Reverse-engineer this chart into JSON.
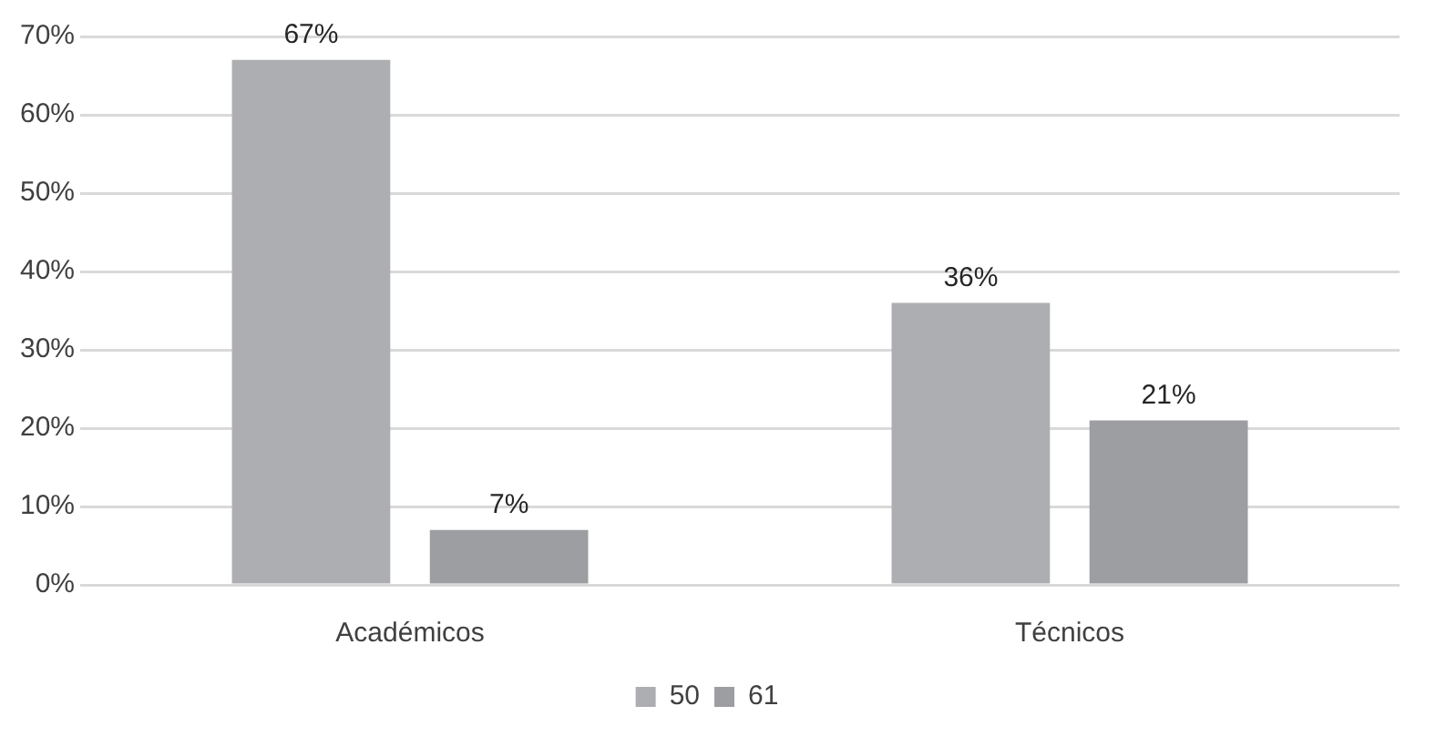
{
  "chart_data": {
    "type": "bar",
    "categories": [
      "Académicos",
      "Técnicos"
    ],
    "series": [
      {
        "name": "50",
        "color": "#adaeb2",
        "values": [
          67,
          36
        ],
        "value_labels": [
          "67%",
          "36%"
        ]
      },
      {
        "name": "61",
        "color": "#9d9ea2",
        "values": [
          7,
          21
        ],
        "value_labels": [
          "7%",
          "21%"
        ]
      }
    ],
    "ylim": [
      0,
      70
    ],
    "yticks": [
      {
        "value": 0,
        "label": "0%"
      },
      {
        "value": 10,
        "label": "10%"
      },
      {
        "value": 20,
        "label": "20%"
      },
      {
        "value": 30,
        "label": "30%"
      },
      {
        "value": 40,
        "label": "40%"
      },
      {
        "value": 50,
        "label": "50%"
      },
      {
        "value": 60,
        "label": "60%"
      },
      {
        "value": 70,
        "label": "70%"
      }
    ],
    "grid": "y",
    "legend": "bottom"
  }
}
